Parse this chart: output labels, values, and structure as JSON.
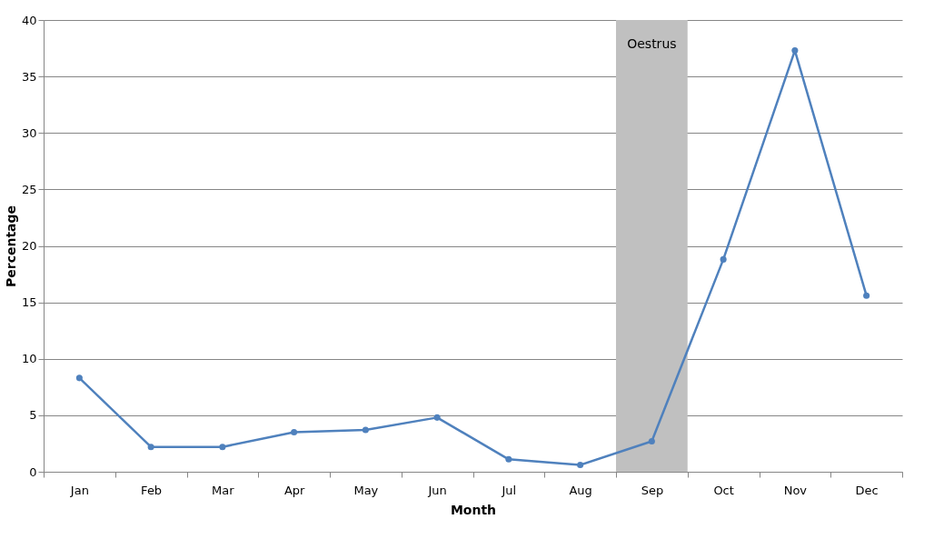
{
  "chart_data": {
    "type": "line",
    "xlabel": "Month",
    "ylabel": "Percentage",
    "categories": [
      "Jan",
      "Feb",
      "Mar",
      "Apr",
      "May",
      "Jun",
      "Jul",
      "Aug",
      "Sep",
      "Oct",
      "Nov",
      "Dec"
    ],
    "series": [
      {
        "color": "#4f81bd",
        "values": [
          8.3,
          2.2,
          2.2,
          3.5,
          3.7,
          4.8,
          1.1,
          0.6,
          2.7,
          18.8,
          37.3,
          15.6
        ]
      }
    ],
    "ylim": [
      0,
      40
    ],
    "yticks": [
      0,
      5,
      10,
      15,
      20,
      25,
      30,
      35,
      40
    ],
    "bands": [
      {
        "axis": "x",
        "from": "Sep",
        "to": "Sep",
        "label": "Oestrus",
        "color": "#c0c0c0"
      }
    ],
    "grid": "y",
    "marker": "circle",
    "line_style": "solid"
  }
}
